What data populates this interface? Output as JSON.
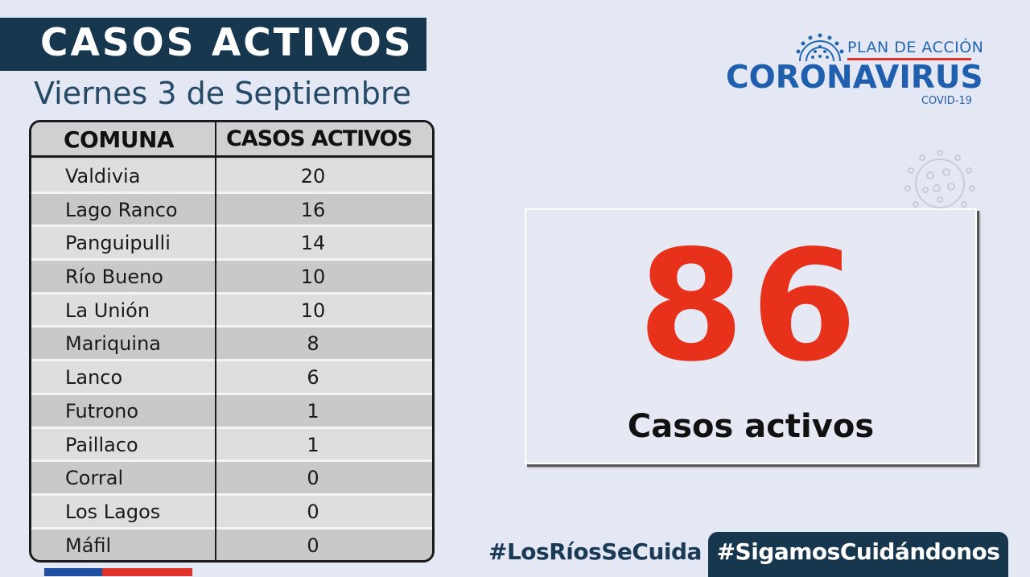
{
  "header": {
    "title": "CASOS ACTIVOS",
    "date": "Viernes 3 de Septiembre"
  },
  "table": {
    "columns": [
      "COMUNA",
      "CASOS ACTIVOS"
    ],
    "rows": [
      {
        "comuna": "Valdivia",
        "casos": "20"
      },
      {
        "comuna": "Lago Ranco",
        "casos": "16"
      },
      {
        "comuna": "Panguipulli",
        "casos": "14"
      },
      {
        "comuna": "Río Bueno",
        "casos": "10"
      },
      {
        "comuna": "La Unión",
        "casos": "10"
      },
      {
        "comuna": "Mariquina",
        "casos": "8"
      },
      {
        "comuna": "Lanco",
        "casos": "6"
      },
      {
        "comuna": "Futrono",
        "casos": "1"
      },
      {
        "comuna": "Paillaco",
        "casos": "1"
      },
      {
        "comuna": "Corral",
        "casos": "0"
      },
      {
        "comuna": "Los Lagos",
        "casos": "0"
      },
      {
        "comuna": "Máfil",
        "casos": "0"
      }
    ]
  },
  "logo": {
    "plan": "PLAN DE ACCIÓN",
    "name": "CORONAVIRUS",
    "sub": "COVID-19",
    "icon": "virus-icon"
  },
  "total": {
    "number": "86",
    "label": "Casos activos"
  },
  "footer": {
    "hashtag_1": "#LosRíosSeCuida",
    "hashtag_2": "#SigamosCuidándonos"
  },
  "colors": {
    "navy": "#17374f",
    "blue": "#1f5fae",
    "red": "#e8311b",
    "background": "#e4e7f4"
  }
}
